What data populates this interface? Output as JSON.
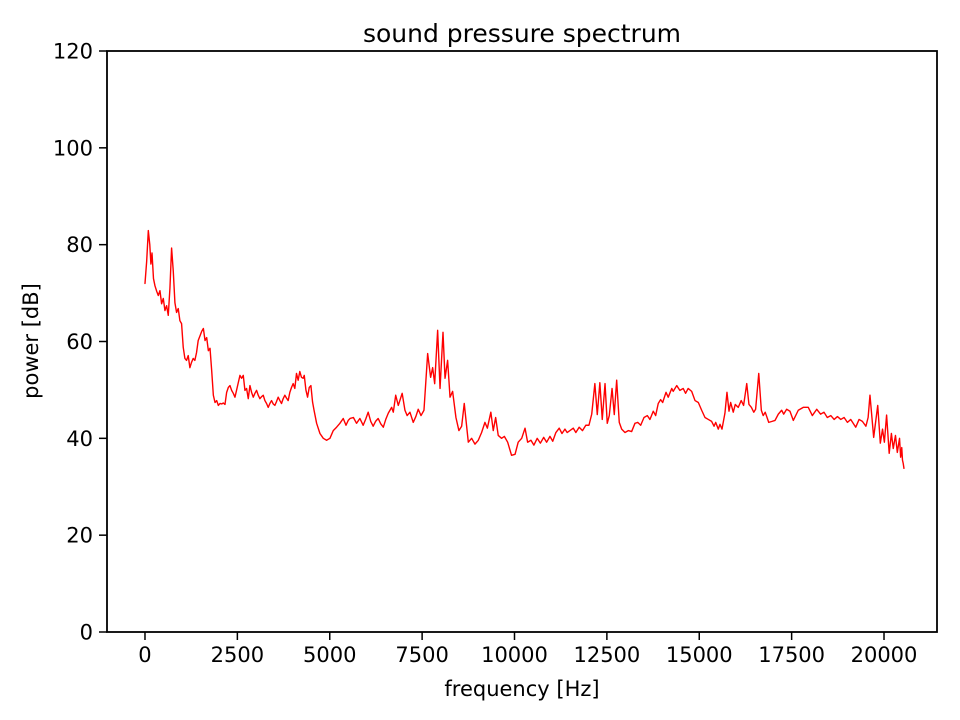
{
  "figure": {
    "background": "#ffffff"
  },
  "chart_data": {
    "type": "line",
    "title": "sound pressure spectrum",
    "xlabel": "frequency [Hz]",
    "ylabel": "power [dB]",
    "xlim": [
      -1028,
      21434
    ],
    "ylim": [
      0,
      120
    ],
    "x_ticks": [
      0,
      2500,
      5000,
      7500,
      10000,
      12500,
      15000,
      17500,
      20000
    ],
    "y_ticks": [
      0,
      20,
      40,
      60,
      80,
      100,
      120
    ],
    "grid": false,
    "legend": null,
    "line_color": "#ff0000",
    "axes_color": "#000000",
    "series": [
      {
        "name": "sound pressure spectrum",
        "points": [
          [
            0,
            72
          ],
          [
            45,
            76.5
          ],
          [
            90,
            82.9
          ],
          [
            130,
            80
          ],
          [
            160,
            76
          ],
          [
            190,
            78.3
          ],
          [
            230,
            73
          ],
          [
            270,
            71.5
          ],
          [
            320,
            70.3
          ],
          [
            360,
            69.5
          ],
          [
            405,
            70.5
          ],
          [
            450,
            67.8
          ],
          [
            495,
            68.9
          ],
          [
            540,
            66.4
          ],
          [
            585,
            67.4
          ],
          [
            630,
            65.4
          ],
          [
            675,
            71
          ],
          [
            720,
            79.3
          ],
          [
            765,
            74.6
          ],
          [
            810,
            68
          ],
          [
            855,
            66
          ],
          [
            900,
            66.8
          ],
          [
            945,
            64.3
          ],
          [
            990,
            63.7
          ],
          [
            1035,
            58.8
          ],
          [
            1080,
            56.5
          ],
          [
            1125,
            56.1
          ],
          [
            1170,
            57.1
          ],
          [
            1215,
            54.6
          ],
          [
            1260,
            55.7
          ],
          [
            1305,
            56.5
          ],
          [
            1350,
            56.1
          ],
          [
            1395,
            57.7
          ],
          [
            1440,
            60.2
          ],
          [
            1490,
            61.2
          ],
          [
            1535,
            62.1
          ],
          [
            1580,
            62.7
          ],
          [
            1625,
            60.2
          ],
          [
            1670,
            60.8
          ],
          [
            1715,
            58.1
          ],
          [
            1760,
            58.6
          ],
          [
            1805,
            54
          ],
          [
            1850,
            48.9
          ],
          [
            1895,
            47.4
          ],
          [
            1940,
            47.8
          ],
          [
            1985,
            46.8
          ],
          [
            2030,
            47.2
          ],
          [
            2075,
            47.1
          ],
          [
            2120,
            47.3
          ],
          [
            2165,
            47
          ],
          [
            2210,
            49.5
          ],
          [
            2255,
            50.5
          ],
          [
            2300,
            50.9
          ],
          [
            2345,
            49.9
          ],
          [
            2390,
            49.3
          ],
          [
            2435,
            48.5
          ],
          [
            2480,
            50
          ],
          [
            2525,
            51.5
          ],
          [
            2570,
            53
          ],
          [
            2615,
            52.4
          ],
          [
            2660,
            53
          ],
          [
            2705,
            49.9
          ],
          [
            2750,
            50.3
          ],
          [
            2795,
            48.2
          ],
          [
            2840,
            50.9
          ],
          [
            2885,
            49.5
          ],
          [
            2930,
            48.5
          ],
          [
            2975,
            49.3
          ],
          [
            3020,
            49.9
          ],
          [
            3065,
            48.9
          ],
          [
            3110,
            48.2
          ],
          [
            3155,
            48.6
          ],
          [
            3200,
            48.9
          ],
          [
            3245,
            47.8
          ],
          [
            3290,
            47.2
          ],
          [
            3335,
            46.4
          ],
          [
            3380,
            47.2
          ],
          [
            3425,
            47.8
          ],
          [
            3470,
            47.1
          ],
          [
            3515,
            46.8
          ],
          [
            3560,
            47.6
          ],
          [
            3605,
            48.5
          ],
          [
            3650,
            47.8
          ],
          [
            3695,
            47.2
          ],
          [
            3740,
            48.2
          ],
          [
            3785,
            48.9
          ],
          [
            3830,
            48.3
          ],
          [
            3875,
            47.8
          ],
          [
            3920,
            49.5
          ],
          [
            3965,
            50.5
          ],
          [
            4010,
            51.3
          ],
          [
            4055,
            50.3
          ],
          [
            4100,
            53.4
          ],
          [
            4145,
            52
          ],
          [
            4190,
            53.8
          ],
          [
            4235,
            52.6
          ],
          [
            4280,
            52.4
          ],
          [
            4310,
            53
          ],
          [
            4355,
            50
          ],
          [
            4400,
            48.5
          ],
          [
            4445,
            50.5
          ],
          [
            4490,
            50.9
          ],
          [
            4535,
            47.5
          ],
          [
            4575,
            45.8
          ],
          [
            4645,
            43.1
          ],
          [
            4735,
            41
          ],
          [
            4825,
            40
          ],
          [
            4915,
            39.6
          ],
          [
            5005,
            40
          ],
          [
            5095,
            41.6
          ],
          [
            5185,
            42.3
          ],
          [
            5275,
            43.1
          ],
          [
            5365,
            44.1
          ],
          [
            5440,
            42.7
          ],
          [
            5500,
            43.7
          ],
          [
            5550,
            44.1
          ],
          [
            5640,
            44.3
          ],
          [
            5725,
            43.1
          ],
          [
            5815,
            44.1
          ],
          [
            5905,
            42.7
          ],
          [
            5975,
            44
          ],
          [
            6040,
            45.4
          ],
          [
            6110,
            43.5
          ],
          [
            6175,
            42.5
          ],
          [
            6240,
            43.5
          ],
          [
            6310,
            44.1
          ],
          [
            6380,
            43
          ],
          [
            6450,
            42.3
          ],
          [
            6520,
            44
          ],
          [
            6585,
            45.2
          ],
          [
            6675,
            46.4
          ],
          [
            6720,
            45.4
          ],
          [
            6785,
            48.9
          ],
          [
            6855,
            46.8
          ],
          [
            6960,
            49.3
          ],
          [
            7035,
            45.8
          ],
          [
            7095,
            44.7
          ],
          [
            7170,
            45.4
          ],
          [
            7260,
            43.3
          ],
          [
            7330,
            44.5
          ],
          [
            7395,
            46
          ],
          [
            7470,
            44.7
          ],
          [
            7550,
            45.8
          ],
          [
            7650,
            57.5
          ],
          [
            7730,
            52.6
          ],
          [
            7785,
            54.6
          ],
          [
            7840,
            51.3
          ],
          [
            7920,
            62.3
          ],
          [
            7985,
            50.3
          ],
          [
            8065,
            61.9
          ],
          [
            8120,
            52.4
          ],
          [
            8190,
            56.1
          ],
          [
            8255,
            48.5
          ],
          [
            8325,
            49.7
          ],
          [
            8415,
            44.3
          ],
          [
            8495,
            41.6
          ],
          [
            8570,
            42.5
          ],
          [
            8640,
            47.2
          ],
          [
            8750,
            39.2
          ],
          [
            8840,
            40
          ],
          [
            8930,
            38.8
          ],
          [
            9020,
            39.6
          ],
          [
            9110,
            41.2
          ],
          [
            9200,
            43.3
          ],
          [
            9265,
            42.1
          ],
          [
            9360,
            45.4
          ],
          [
            9425,
            41.6
          ],
          [
            9490,
            44.3
          ],
          [
            9560,
            40.6
          ],
          [
            9650,
            40
          ],
          [
            9725,
            40.4
          ],
          [
            9815,
            39.2
          ],
          [
            9920,
            36.5
          ],
          [
            10015,
            36.7
          ],
          [
            10100,
            39.2
          ],
          [
            10195,
            40
          ],
          [
            10285,
            42.1
          ],
          [
            10355,
            39.2
          ],
          [
            10445,
            39.6
          ],
          [
            10525,
            38.6
          ],
          [
            10615,
            40
          ],
          [
            10700,
            39
          ],
          [
            10790,
            40.2
          ],
          [
            10870,
            39.2
          ],
          [
            10960,
            40.4
          ],
          [
            11035,
            39.4
          ],
          [
            11120,
            41.2
          ],
          [
            11210,
            42.1
          ],
          [
            11285,
            41
          ],
          [
            11365,
            41.9
          ],
          [
            11425,
            41.2
          ],
          [
            11500,
            41.6
          ],
          [
            11590,
            42.1
          ],
          [
            11660,
            41.2
          ],
          [
            11750,
            42.3
          ],
          [
            11840,
            41.6
          ],
          [
            11930,
            42.7
          ],
          [
            12015,
            42.7
          ],
          [
            12090,
            45
          ],
          [
            12175,
            51.3
          ],
          [
            12240,
            44.9
          ],
          [
            12310,
            51.5
          ],
          [
            12375,
            43.9
          ],
          [
            12450,
            51.3
          ],
          [
            12510,
            43.1
          ],
          [
            12565,
            44.7
          ],
          [
            12640,
            50.3
          ],
          [
            12700,
            44.9
          ],
          [
            12765,
            52
          ],
          [
            12835,
            43.3
          ],
          [
            12900,
            41.9
          ],
          [
            12990,
            41.2
          ],
          [
            13080,
            41.6
          ],
          [
            13170,
            41.4
          ],
          [
            13260,
            43.1
          ],
          [
            13335,
            43.3
          ],
          [
            13415,
            42.7
          ],
          [
            13505,
            44.3
          ],
          [
            13595,
            44.7
          ],
          [
            13665,
            43.9
          ],
          [
            13755,
            45.6
          ],
          [
            13820,
            44.7
          ],
          [
            13890,
            47.2
          ],
          [
            13955,
            48
          ],
          [
            14010,
            47.4
          ],
          [
            14100,
            49.5
          ],
          [
            14160,
            48.5
          ],
          [
            14255,
            50.3
          ],
          [
            14295,
            49.7
          ],
          [
            14390,
            50.9
          ],
          [
            14475,
            49.9
          ],
          [
            14565,
            50.3
          ],
          [
            14630,
            49.3
          ],
          [
            14700,
            50.3
          ],
          [
            14795,
            49.7
          ],
          [
            14885,
            47.8
          ],
          [
            14975,
            47.4
          ],
          [
            15065,
            45.8
          ],
          [
            15155,
            44.3
          ],
          [
            15245,
            43.9
          ],
          [
            15335,
            43.5
          ],
          [
            15400,
            42.5
          ],
          [
            15445,
            43.3
          ],
          [
            15515,
            41.9
          ],
          [
            15560,
            42.9
          ],
          [
            15615,
            41.9
          ],
          [
            15695,
            45.2
          ],
          [
            15750,
            49.5
          ],
          [
            15805,
            45.6
          ],
          [
            15850,
            47.4
          ],
          [
            15920,
            45.4
          ],
          [
            15975,
            47
          ],
          [
            16055,
            46.4
          ],
          [
            16135,
            47.8
          ],
          [
            16200,
            46.8
          ],
          [
            16285,
            51.3
          ],
          [
            16345,
            47
          ],
          [
            16410,
            46.4
          ],
          [
            16475,
            45.4
          ],
          [
            16525,
            46
          ],
          [
            16610,
            53.4
          ],
          [
            16680,
            45.8
          ],
          [
            16730,
            44.7
          ],
          [
            16785,
            45.4
          ],
          [
            16880,
            43.3
          ],
          [
            16970,
            43.5
          ],
          [
            17050,
            43.7
          ],
          [
            17140,
            45
          ],
          [
            17230,
            45.8
          ],
          [
            17285,
            45
          ],
          [
            17365,
            46
          ],
          [
            17455,
            45.6
          ],
          [
            17545,
            43.7
          ],
          [
            17680,
            45.8
          ],
          [
            17815,
            46.4
          ],
          [
            17950,
            46.4
          ],
          [
            18060,
            44.7
          ],
          [
            18180,
            46
          ],
          [
            18285,
            45
          ],
          [
            18375,
            45.4
          ],
          [
            18465,
            44.3
          ],
          [
            18560,
            44.7
          ],
          [
            18650,
            43.9
          ],
          [
            18740,
            44.5
          ],
          [
            18830,
            43.9
          ],
          [
            18920,
            44.3
          ],
          [
            19010,
            43.3
          ],
          [
            19100,
            43.9
          ],
          [
            19235,
            42.3
          ],
          [
            19325,
            43.9
          ],
          [
            19415,
            43.5
          ],
          [
            19510,
            42.5
          ],
          [
            19570,
            44.3
          ],
          [
            19620,
            48.9
          ],
          [
            19720,
            40.2
          ],
          [
            19830,
            46.8
          ],
          [
            19900,
            39
          ],
          [
            19960,
            41.9
          ],
          [
            20010,
            39.2
          ],
          [
            20070,
            44.8
          ],
          [
            20140,
            36.9
          ],
          [
            20200,
            41
          ],
          [
            20250,
            37.9
          ],
          [
            20310,
            40.6
          ],
          [
            20360,
            37.1
          ],
          [
            20420,
            40
          ],
          [
            20450,
            36.1
          ],
          [
            20480,
            38.1
          ],
          [
            20500,
            35.5
          ],
          [
            20520,
            34.8
          ],
          [
            20540,
            33.8
          ]
        ]
      }
    ]
  }
}
